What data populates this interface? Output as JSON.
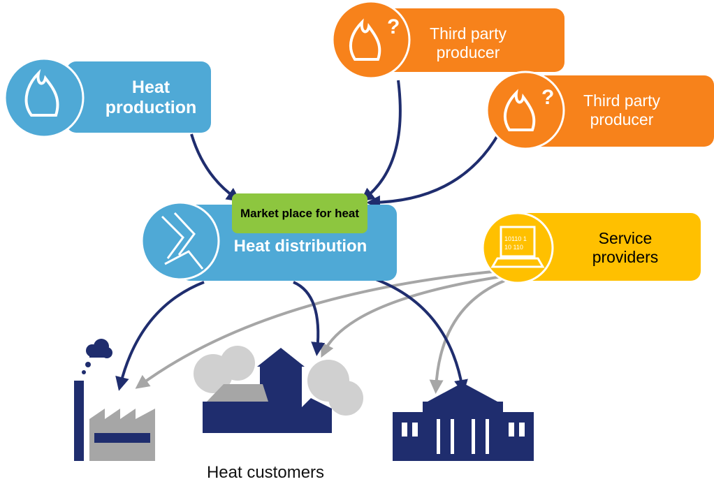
{
  "nodes": [
    {
      "label": "Heat production"
    },
    {
      "label": "Third party producer"
    },
    {
      "label": "Third party producer"
    },
    {
      "label": "Heat distribution"
    },
    {
      "label": "Market place for heat"
    },
    {
      "label": "Service providers"
    }
  ],
  "laptop_code": [
    "10110 1",
    "10 110"
  ],
  "customers_label": "Heat customers"
}
